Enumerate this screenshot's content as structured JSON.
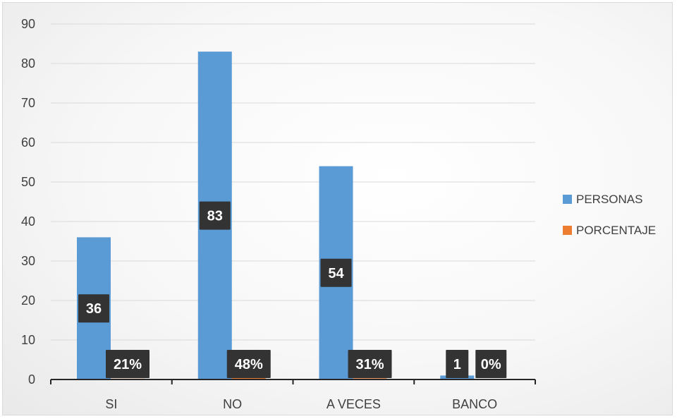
{
  "chart_data": {
    "type": "bar",
    "categories": [
      "SI",
      "NO",
      "A VECES",
      "BANCO"
    ],
    "series": [
      {
        "name": "PERSONAS",
        "color": "#5B9BD5",
        "values": [
          36,
          83,
          54,
          1
        ],
        "labels": [
          "36",
          "83",
          "54",
          "1"
        ]
      },
      {
        "name": "PORCENTAJE",
        "color": "#ED7D31",
        "values": [
          0.21,
          0.48,
          0.31,
          0.0
        ],
        "labels": [
          "21%",
          "48%",
          "31%",
          "0%"
        ]
      }
    ],
    "y_ticks": [
      "0",
      "10",
      "20",
      "30",
      "40",
      "50",
      "60",
      "70",
      "80",
      "90"
    ],
    "ylim": [
      0,
      90
    ],
    "grid": true,
    "legend": "right",
    "title": "",
    "xlabel": "",
    "ylabel": ""
  }
}
